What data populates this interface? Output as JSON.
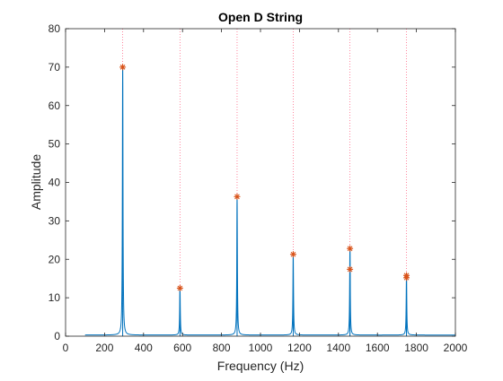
{
  "chart_data": {
    "type": "line",
    "title": "Open D String",
    "xlabel": "Frequency (Hz)",
    "ylabel": "Amplitude",
    "xlim": [
      0,
      2000
    ],
    "ylim": [
      0,
      80
    ],
    "xticks": [
      0,
      200,
      400,
      600,
      800,
      1000,
      1200,
      1400,
      1600,
      1800,
      2000
    ],
    "yticks": [
      0,
      10,
      20,
      30,
      40,
      50,
      60,
      70,
      80
    ],
    "xtick_labels": [
      "0",
      "200",
      "400",
      "600",
      "800",
      "1000",
      "1200",
      "1400",
      "1600",
      "1800",
      "2000"
    ],
    "ytick_labels": [
      "0",
      "10",
      "20",
      "30",
      "40",
      "50",
      "60",
      "70",
      "80"
    ],
    "grid": false,
    "series": [
      {
        "kind": "spectrum-line",
        "color": "#0072BD",
        "x_range": [
          100,
          2000
        ],
        "peaks": [
          {
            "x": 293,
            "y": 70.0
          },
          {
            "x": 587,
            "y": 12.5
          },
          {
            "x": 880,
            "y": 36.3
          },
          {
            "x": 1168,
            "y": 21.3
          },
          {
            "x": 1459,
            "y": 22.8
          },
          {
            "x": 1459,
            "y": 17.4
          },
          {
            "x": 1749,
            "y": 15.8
          },
          {
            "x": 1749,
            "y": 15.2
          }
        ]
      },
      {
        "kind": "markers",
        "marker": "asterisk",
        "color": "#D95319",
        "points": [
          {
            "x": 293,
            "y": 70.0
          },
          {
            "x": 587,
            "y": 12.5
          },
          {
            "x": 880,
            "y": 36.3
          },
          {
            "x": 1168,
            "y": 21.3
          },
          {
            "x": 1459,
            "y": 22.8
          },
          {
            "x": 1459,
            "y": 17.4
          },
          {
            "x": 1749,
            "y": 15.8
          },
          {
            "x": 1749,
            "y": 15.2
          }
        ]
      },
      {
        "kind": "reference-lines",
        "style": "dotted",
        "color": "#FF6B8A",
        "x": [
          293,
          587,
          880,
          1168,
          1459,
          1749
        ]
      }
    ],
    "colors": {
      "axes": "#262626",
      "background": "#ffffff"
    }
  }
}
